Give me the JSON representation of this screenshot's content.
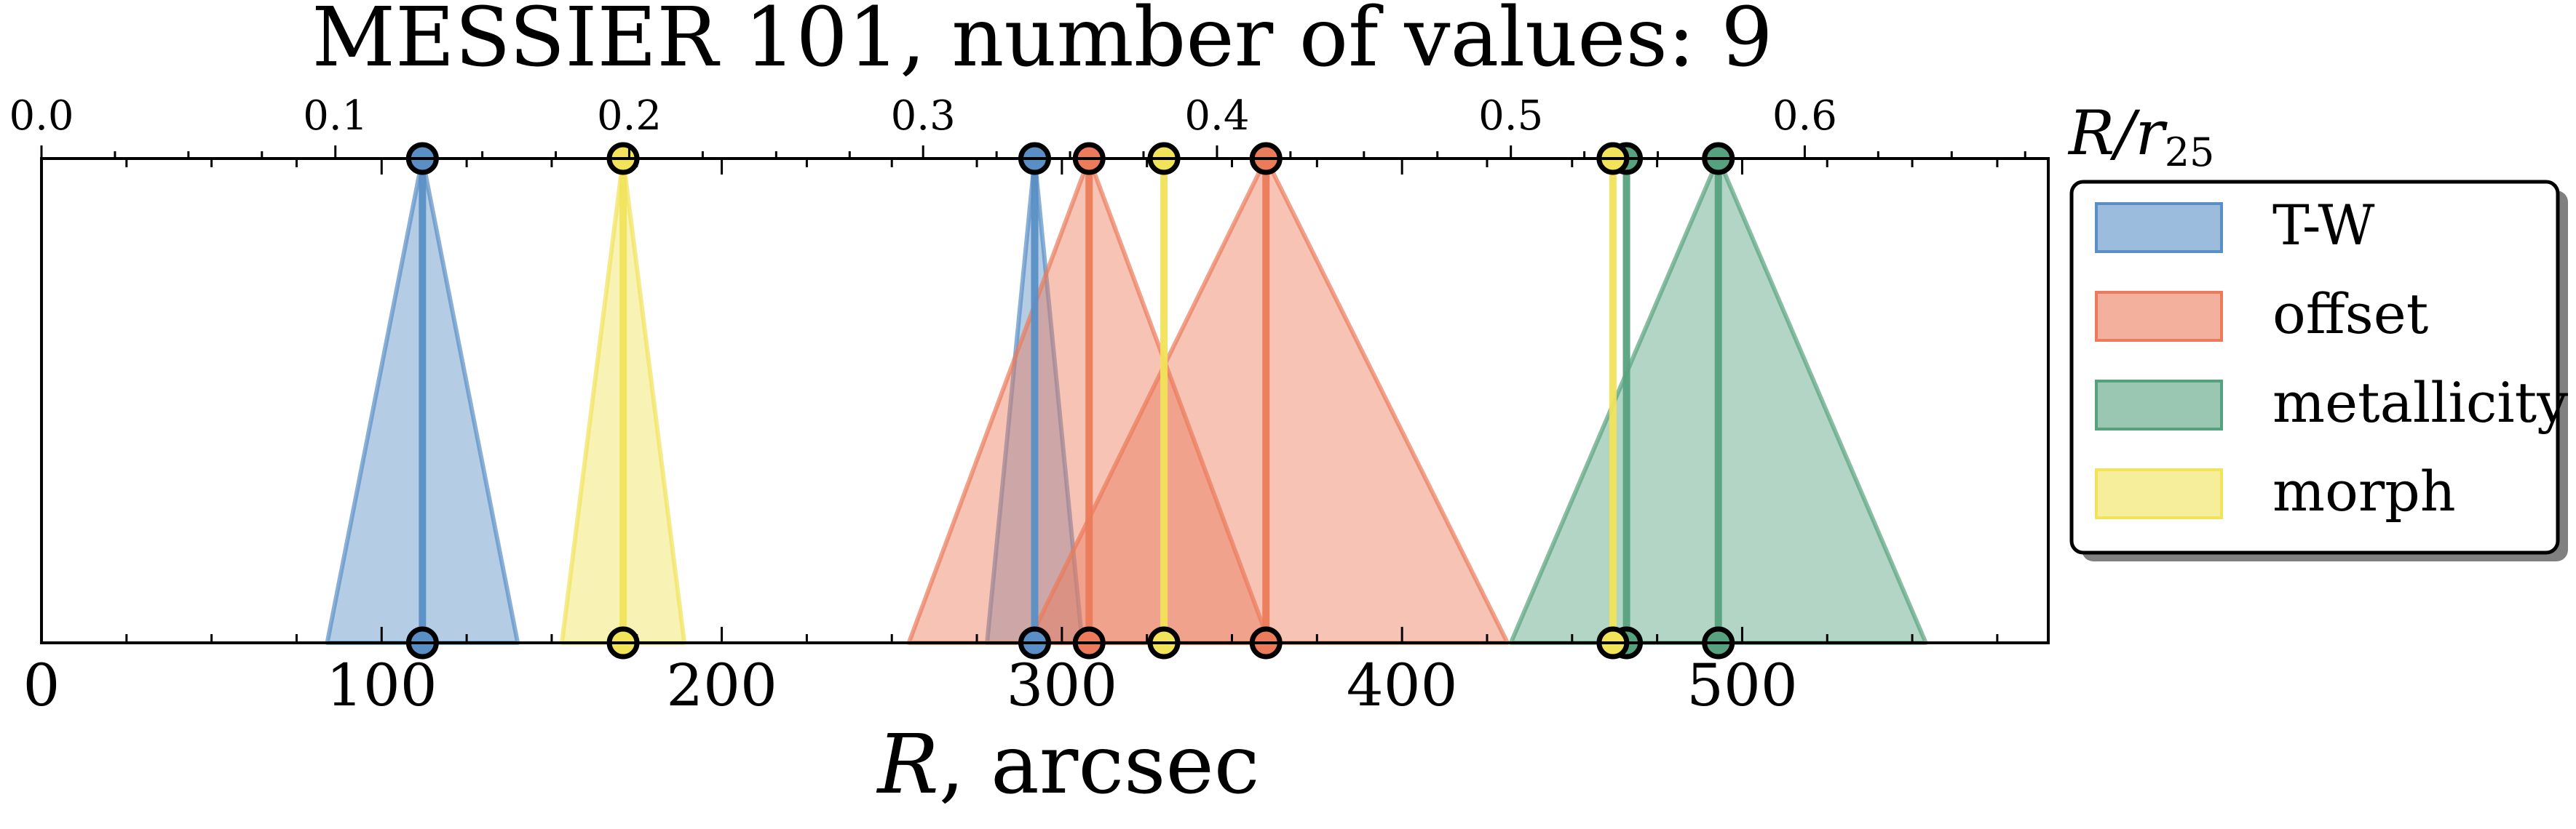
{
  "chart_data": {
    "type": "area",
    "title": "MESSIER 101, number of values: 9",
    "xlabel": "R, arcsec",
    "xlabel_top": "R/r25",
    "xlim": [
      0,
      590
    ],
    "x_ticks": [
      0,
      100,
      200,
      300,
      400,
      500
    ],
    "top_ticks": [
      "0.0",
      "0.1",
      "0.2",
      "0.3",
      "0.4",
      "0.5",
      "0.6"
    ],
    "arcsec_per_r25": 864,
    "legend_position": "outside-right",
    "series": [
      {
        "name": "T-W",
        "color": "#5a8fc6",
        "items": [
          {
            "center": 112,
            "left": 84,
            "right": 140
          },
          {
            "center": 292,
            "left": 278,
            "right": 306
          }
        ]
      },
      {
        "name": "offset",
        "color": "#eb7b5a",
        "items": [
          {
            "center": 308,
            "left": 255,
            "right": 361
          },
          {
            "center": 360,
            "left": 290,
            "right": 431
          }
        ]
      },
      {
        "name": "metallicity",
        "color": "#57a27e",
        "items": [
          {
            "center": 466,
            "left": 466,
            "right": 466
          },
          {
            "center": 493,
            "left": 432,
            "right": 554
          }
        ]
      },
      {
        "name": "morph",
        "color": "#f1e35a",
        "items": [
          {
            "center": 171,
            "left": 153,
            "right": 189
          },
          {
            "center": 330,
            "left": 330,
            "right": 330
          },
          {
            "center": 462,
            "left": 462,
            "right": 462
          }
        ]
      }
    ]
  }
}
